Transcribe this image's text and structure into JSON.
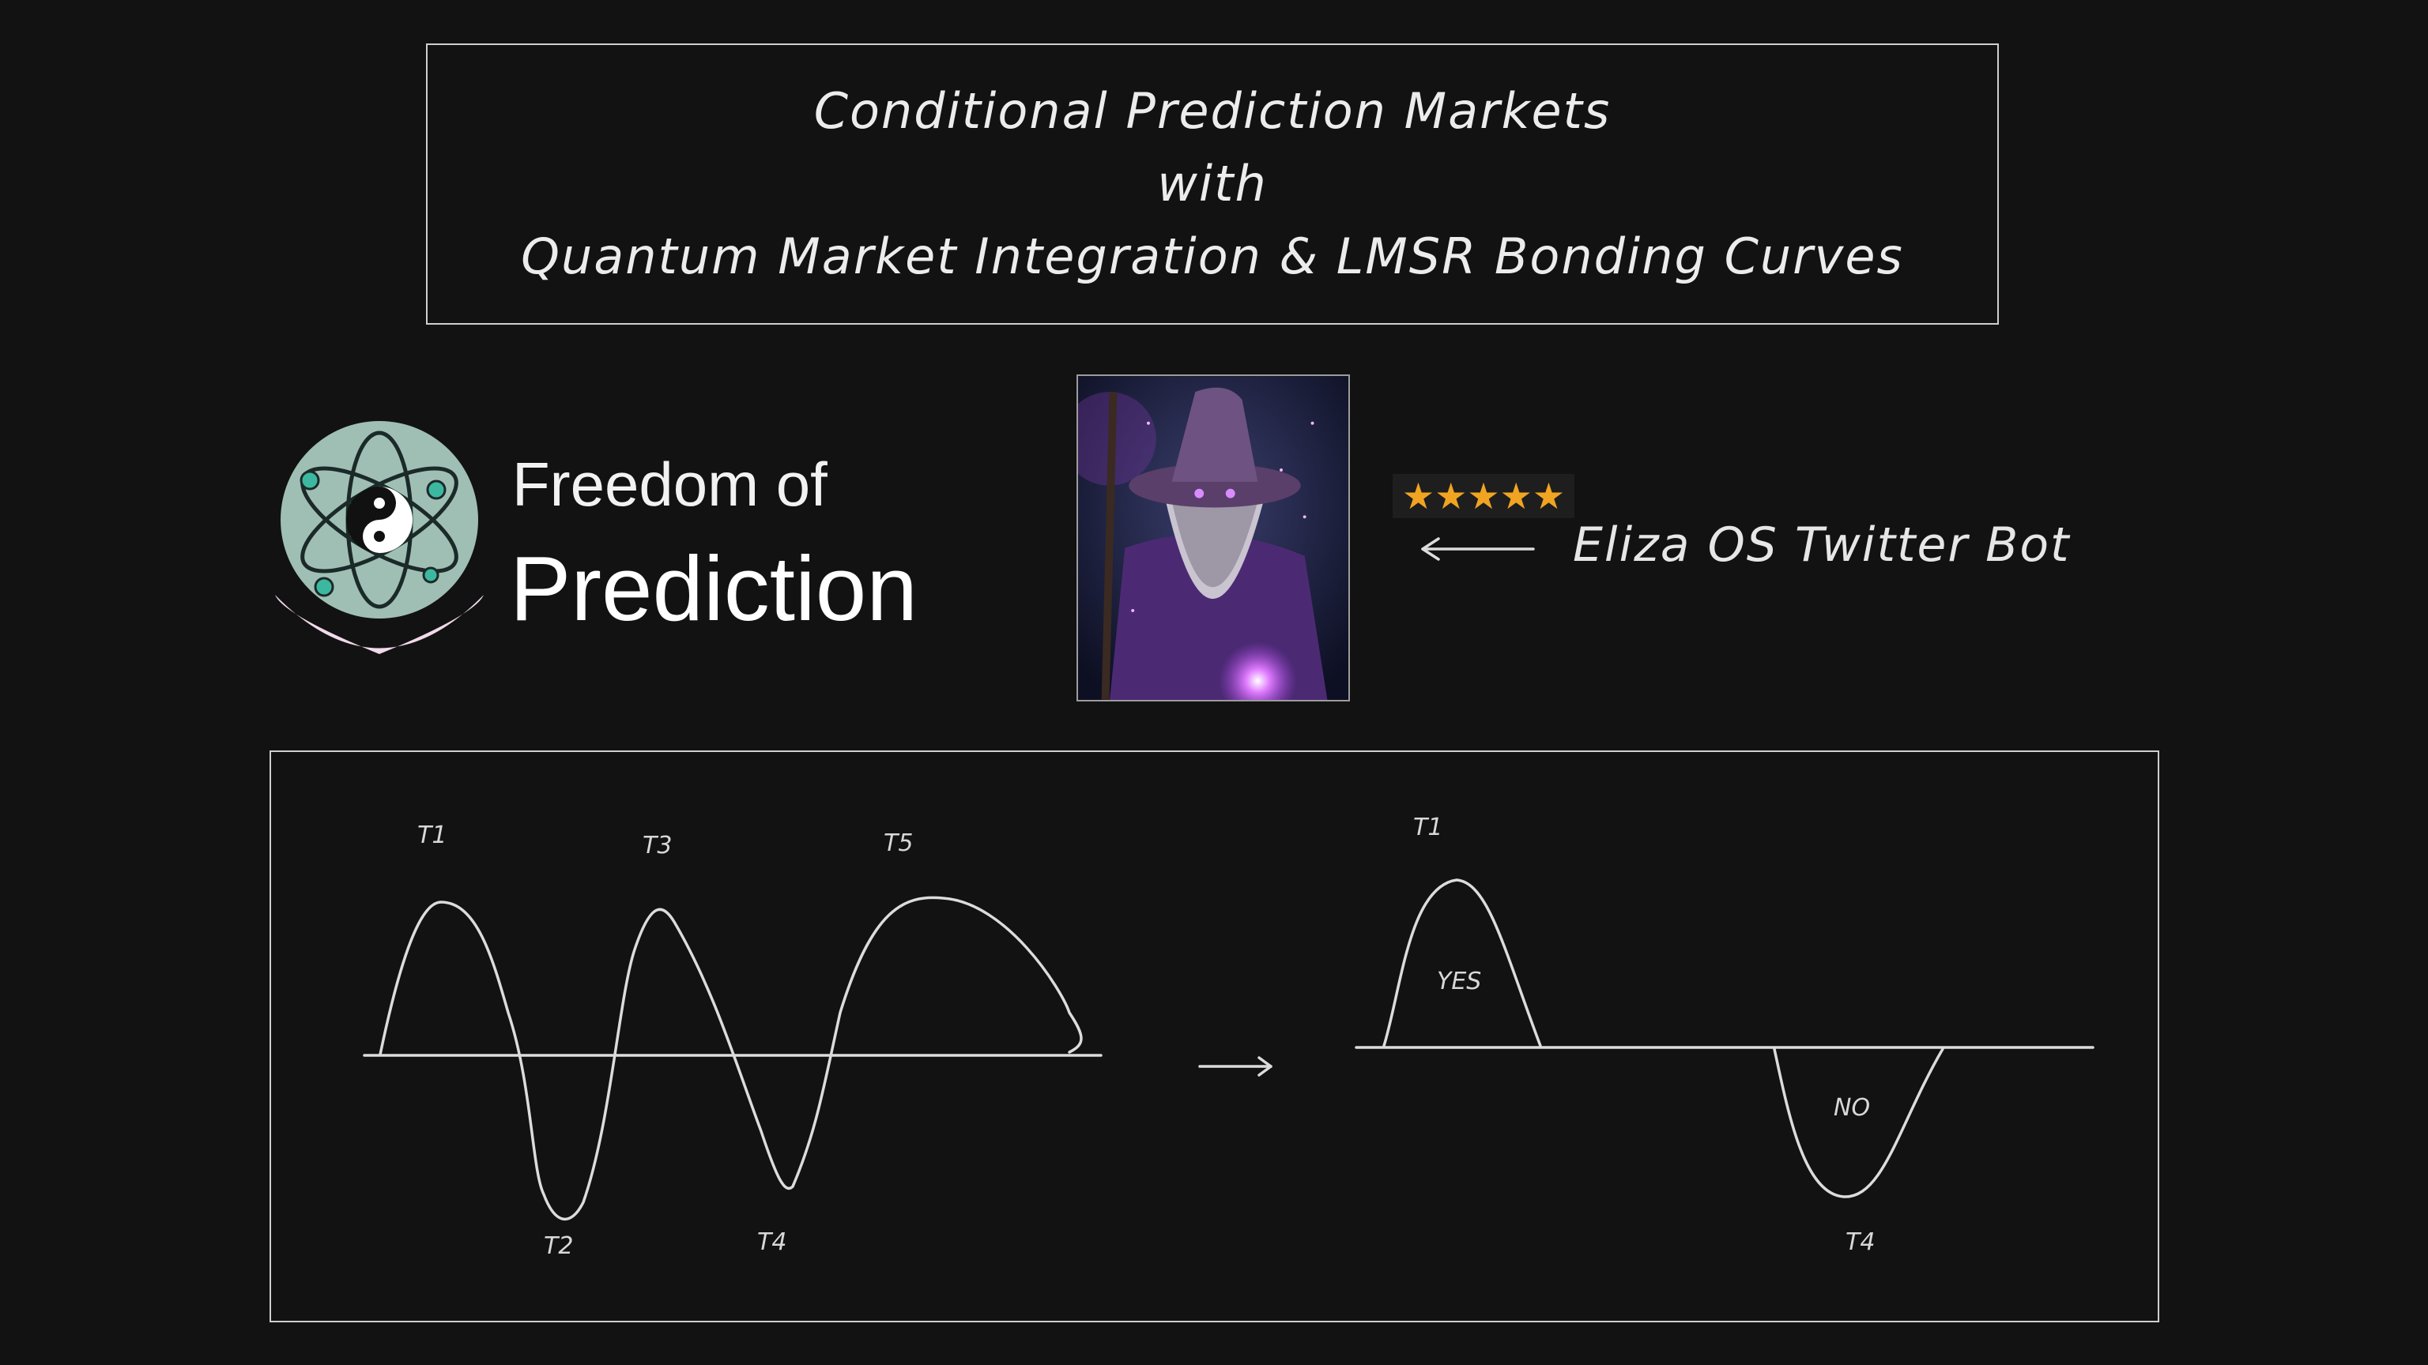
{
  "title": {
    "line1": "Conditional Prediction Markets",
    "line2": "with",
    "line3": "Quantum Market Integration & LMSR Bonding Curves"
  },
  "brand": {
    "top": "Freedom of",
    "main": "Prediction",
    "logo_icon": "atom-yinyang-icon"
  },
  "bot": {
    "stars": "★★★★★",
    "rating_stars": 5,
    "label": "Eliza OS Twitter Bot",
    "avatar_icon": "wizard-avatar-icon"
  },
  "diagram": {
    "left": {
      "labels": [
        "T1",
        "T2",
        "T3",
        "T4",
        "T5"
      ]
    },
    "right": {
      "labels": [
        "T1",
        "YES",
        "NO",
        "T4"
      ]
    }
  },
  "colors": {
    "background": "#121212",
    "stroke": "#dcdcdc",
    "star": "#f0a422",
    "logo_circle": "#9fbfb4",
    "logo_smile": "#f2d9ea",
    "wizard_purple": "#6a2f8c"
  }
}
